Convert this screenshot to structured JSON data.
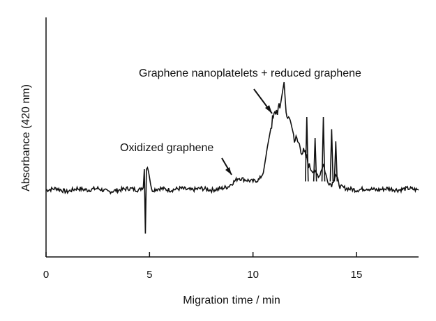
{
  "chart_data": {
    "type": "line",
    "title": "",
    "xlabel": "Migration time / min",
    "ylabel": "Absorbance (420 nm)",
    "xlim": [
      0,
      18
    ],
    "x_ticks": [
      0,
      5,
      10,
      15
    ],
    "x_tick_labels": [
      "0",
      "5",
      "10",
      "15"
    ],
    "y_ticks_shown": false,
    "grid": false,
    "legend": "none",
    "annotations": [
      {
        "text": "Oxidized graphene",
        "points_to_x": 9.0
      },
      {
        "text": "Graphene nanoplatelets + reduced graphene",
        "points_to_x": 11.0
      }
    ],
    "series": [
      {
        "values": [
          [
            0.0,
            0.0
          ],
          [
            0.5,
            0.01
          ],
          [
            1.0,
            -0.01
          ],
          [
            1.5,
            0.01
          ],
          [
            2.0,
            0.0
          ],
          [
            2.5,
            0.01
          ],
          [
            3.0,
            -0.01
          ],
          [
            3.5,
            0.0
          ],
          [
            4.0,
            0.01
          ],
          [
            4.5,
            0.0
          ],
          [
            4.7,
            0.02
          ],
          [
            4.75,
            0.12
          ],
          [
            4.8,
            -0.25
          ],
          [
            4.85,
            0.12
          ],
          [
            4.9,
            0.14
          ],
          [
            5.0,
            0.08
          ],
          [
            5.1,
            0.0
          ],
          [
            5.5,
            0.01
          ],
          [
            6.0,
            0.0
          ],
          [
            6.5,
            0.01
          ],
          [
            7.0,
            0.0
          ],
          [
            7.5,
            0.01
          ],
          [
            8.0,
            0.0
          ],
          [
            8.5,
            0.01
          ],
          [
            8.8,
            0.02
          ],
          [
            9.0,
            0.04
          ],
          [
            9.3,
            0.07
          ],
          [
            9.6,
            0.06
          ],
          [
            10.0,
            0.05
          ],
          [
            10.3,
            0.06
          ],
          [
            10.5,
            0.1
          ],
          [
            10.7,
            0.25
          ],
          [
            10.9,
            0.38
          ],
          [
            11.1,
            0.45
          ],
          [
            11.3,
            0.47
          ],
          [
            11.5,
            0.62
          ],
          [
            11.6,
            0.44
          ],
          [
            11.8,
            0.4
          ],
          [
            12.0,
            0.3
          ],
          [
            12.2,
            0.27
          ],
          [
            12.4,
            0.22
          ],
          [
            12.6,
            0.18
          ],
          [
            12.8,
            0.12
          ],
          [
            13.0,
            0.1
          ],
          [
            13.2,
            0.08
          ],
          [
            13.4,
            0.15
          ],
          [
            13.6,
            0.05
          ],
          [
            13.8,
            0.03
          ],
          [
            14.0,
            0.09
          ],
          [
            14.2,
            0.02
          ],
          [
            14.5,
            0.01
          ],
          [
            15.0,
            0.0
          ],
          [
            15.5,
            0.01
          ],
          [
            16.0,
            0.0
          ],
          [
            16.5,
            0.01
          ],
          [
            17.0,
            0.0
          ],
          [
            17.5,
            0.01
          ],
          [
            18.0,
            0.0
          ]
        ],
        "spikes": [
          [
            12.6,
            0.42
          ],
          [
            13.0,
            0.3
          ],
          [
            13.4,
            0.42
          ],
          [
            13.8,
            0.35
          ],
          [
            14.0,
            0.28
          ]
        ]
      }
    ]
  }
}
